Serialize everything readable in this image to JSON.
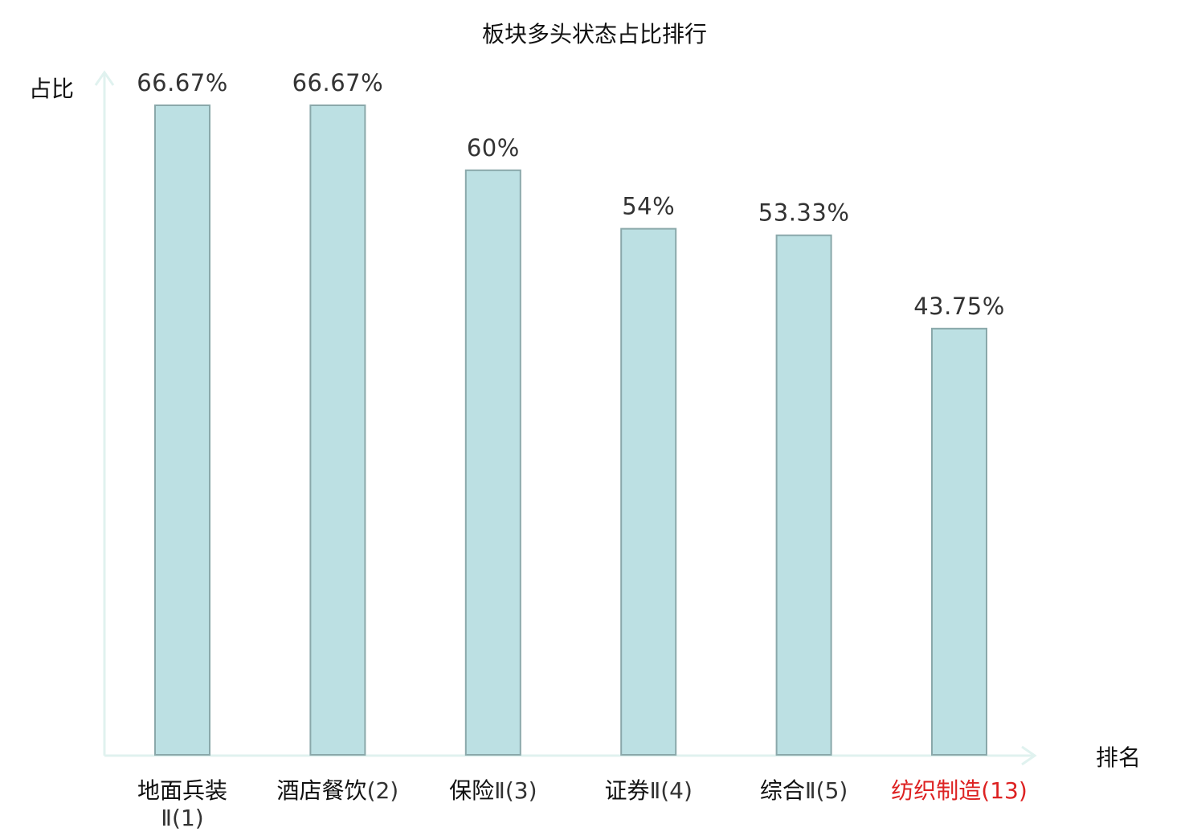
{
  "chart_data": {
    "type": "bar",
    "title": "板块多头状态占比排行",
    "ylabel": "占比",
    "xlabel": "排名",
    "ylim": [
      0,
      72
    ],
    "grid": false,
    "legend": "none",
    "categories": [
      {
        "name": "地面兵装",
        "suffix": "Ⅱ(1)",
        "wrap": true,
        "highlight": false
      },
      {
        "name": "酒店餐饮",
        "suffix": "(2)",
        "wrap": false,
        "highlight": false
      },
      {
        "name": "保险",
        "suffix": "Ⅱ(3)",
        "wrap": false,
        "highlight": false
      },
      {
        "name": "证券",
        "suffix": "Ⅱ(4)",
        "wrap": false,
        "highlight": false
      },
      {
        "name": "综合",
        "suffix": "Ⅱ(5)",
        "wrap": false,
        "highlight": false
      },
      {
        "name": "纺织制造",
        "suffix": "(13)",
        "wrap": false,
        "highlight": true
      }
    ],
    "values": [
      66.67,
      66.67,
      60,
      54,
      53.33,
      43.75
    ],
    "value_labels": [
      "66.67%",
      "66.67%",
      "60%",
      "54%",
      "53.33%",
      "43.75%"
    ],
    "colors": {
      "bar_fill": "#bce0e3",
      "bar_stroke": "#8aa8aa",
      "axis": "#e0f2ef",
      "highlight_label": "#dd2222",
      "label": "#111111",
      "suffix": "#333333"
    }
  }
}
